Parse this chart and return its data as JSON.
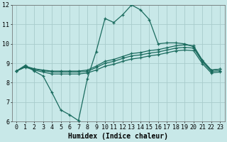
{
  "title": "",
  "xlabel": "Humidex (Indice chaleur)",
  "xlim": [
    -0.5,
    23.5
  ],
  "ylim": [
    6,
    12
  ],
  "xtick_labels": [
    "0",
    "1",
    "2",
    "3",
    "4",
    "5",
    "6",
    "7",
    "8",
    "9",
    "10",
    "11",
    "12",
    "13",
    "14",
    "15",
    "16",
    "17",
    "18",
    "19",
    "20",
    "21",
    "22",
    "23"
  ],
  "ytick_labels": [
    "6",
    "7",
    "8",
    "9",
    "10",
    "11",
    "12"
  ],
  "ytick_vals": [
    6,
    7,
    8,
    9,
    10,
    11,
    12
  ],
  "bg_color": "#c8e8e8",
  "grid_color": "#a8cccc",
  "line_color": "#1a6b5e",
  "series": {
    "line1_volatile": [
      8.6,
      8.9,
      8.6,
      8.35,
      7.5,
      6.6,
      6.35,
      6.05,
      8.2,
      9.6,
      11.3,
      11.1,
      11.5,
      12.0,
      11.75,
      11.25,
      10.0,
      10.05,
      10.05,
      10.0,
      9.85,
      9.15,
      8.65,
      8.7
    ],
    "line2_upper": [
      8.6,
      8.85,
      8.72,
      8.65,
      8.6,
      8.6,
      8.6,
      8.6,
      8.65,
      8.85,
      9.1,
      9.2,
      9.35,
      9.5,
      9.55,
      9.65,
      9.7,
      9.8,
      9.9,
      9.95,
      9.9,
      9.15,
      8.65,
      8.7
    ],
    "line3_mid": [
      8.6,
      8.82,
      8.7,
      8.62,
      8.55,
      8.55,
      8.55,
      8.55,
      8.58,
      8.78,
      9.0,
      9.1,
      9.25,
      9.38,
      9.43,
      9.52,
      9.58,
      9.68,
      9.78,
      9.82,
      9.78,
      9.08,
      8.58,
      8.62
    ],
    "line4_lower": [
      8.6,
      8.8,
      8.65,
      8.55,
      8.45,
      8.45,
      8.45,
      8.45,
      8.5,
      8.65,
      8.85,
      8.95,
      9.1,
      9.22,
      9.28,
      9.38,
      9.44,
      9.54,
      9.64,
      9.68,
      9.65,
      8.98,
      8.5,
      8.55
    ]
  },
  "marker_size": 3.5,
  "line_width": 0.9,
  "label_fontsize": 7,
  "tick_fontsize": 6
}
